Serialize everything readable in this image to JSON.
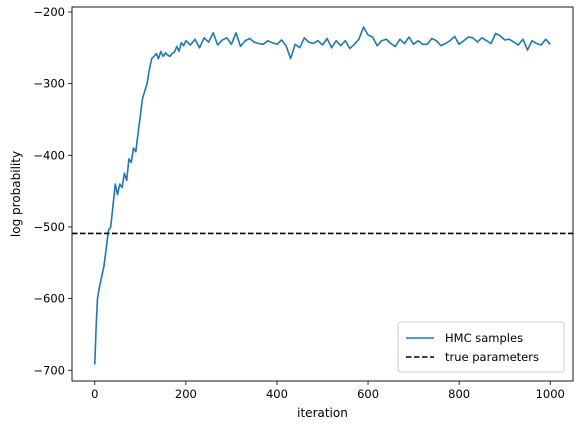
{
  "chart_data": {
    "type": "line",
    "title": "",
    "xlabel": "iteration",
    "ylabel": "log probability",
    "xlim": [
      -50,
      1050
    ],
    "ylim": [
      -715,
      -193
    ],
    "x_ticks": [
      0,
      200,
      400,
      600,
      800,
      1000
    ],
    "y_ticks": [
      -700,
      -600,
      -500,
      -400,
      -300,
      -200
    ],
    "grid": false,
    "legend": {
      "placement": "lower-right",
      "entries": [
        "HMC samples",
        "true parameters"
      ]
    },
    "colors": {
      "hmc": "#1f77b4",
      "true": "#000000"
    },
    "series": [
      {
        "name": "HMC samples",
        "style": "solid",
        "x": [
          0,
          3,
          6,
          10,
          15,
          20,
          25,
          30,
          35,
          40,
          45,
          50,
          55,
          60,
          65,
          70,
          75,
          80,
          85,
          90,
          95,
          100,
          105,
          110,
          115,
          120,
          125,
          130,
          135,
          140,
          145,
          150,
          155,
          160,
          165,
          170,
          175,
          180,
          185,
          190,
          195,
          200,
          210,
          220,
          230,
          240,
          250,
          260,
          270,
          280,
          290,
          300,
          310,
          320,
          330,
          340,
          350,
          360,
          370,
          380,
          390,
          400,
          410,
          420,
          430,
          440,
          450,
          460,
          470,
          480,
          490,
          500,
          510,
          520,
          530,
          540,
          550,
          560,
          570,
          580,
          590,
          600,
          610,
          620,
          630,
          640,
          650,
          660,
          670,
          680,
          690,
          700,
          710,
          720,
          730,
          740,
          750,
          760,
          770,
          780,
          790,
          800,
          810,
          820,
          830,
          840,
          850,
          860,
          870,
          880,
          890,
          900,
          910,
          920,
          930,
          940,
          950,
          960,
          970,
          980,
          990,
          1000
        ],
        "y": [
          -692,
          -640,
          -600,
          -585,
          -570,
          -555,
          -530,
          -505,
          -500,
          -470,
          -440,
          -455,
          -440,
          -445,
          -425,
          -435,
          -405,
          -410,
          -390,
          -395,
          -370,
          -345,
          -320,
          -310,
          -300,
          -280,
          -265,
          -262,
          -258,
          -265,
          -255,
          -262,
          -257,
          -260,
          -262,
          -258,
          -256,
          -248,
          -255,
          -243,
          -247,
          -240,
          -246,
          -238,
          -250,
          -236,
          -242,
          -229,
          -246,
          -239,
          -236,
          -245,
          -229,
          -248,
          -240,
          -237,
          -242,
          -244,
          -245,
          -240,
          -243,
          -245,
          -239,
          -247,
          -265,
          -245,
          -250,
          -236,
          -242,
          -244,
          -240,
          -246,
          -237,
          -250,
          -240,
          -247,
          -240,
          -251,
          -245,
          -238,
          -221,
          -232,
          -235,
          -247,
          -240,
          -238,
          -244,
          -248,
          -238,
          -244,
          -235,
          -245,
          -240,
          -245,
          -245,
          -237,
          -240,
          -247,
          -244,
          -240,
          -234,
          -245,
          -240,
          -235,
          -236,
          -242,
          -236,
          -240,
          -244,
          -230,
          -233,
          -239,
          -238,
          -242,
          -246,
          -238,
          -253,
          -240,
          -244,
          -246,
          -238,
          -245
        ]
      },
      {
        "name": "true parameters",
        "style": "dashed",
        "y_constant": -509
      }
    ]
  }
}
